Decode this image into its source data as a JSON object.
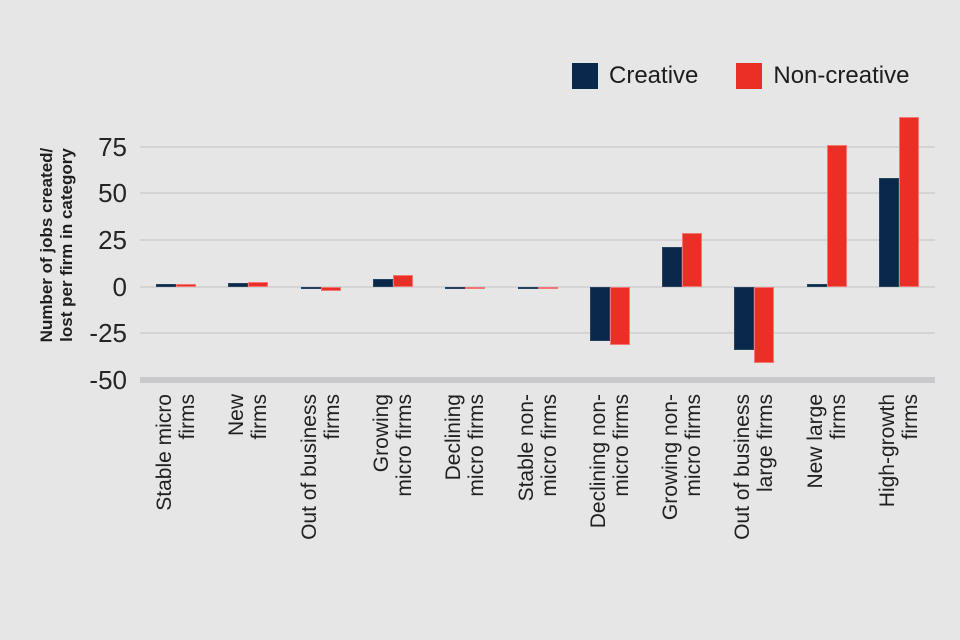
{
  "colors": {
    "background": "#e6e6e6",
    "gridline": "#d4d4d6",
    "axis_band": "#c9c9cb",
    "creative": "#0a2849",
    "non_creative": "#ea2f27"
  },
  "chart_data": {
    "type": "bar",
    "title": "",
    "ylabel": "Number of jobs created/\nlost per firm in category",
    "xlabel": "",
    "categories": [
      "Stable micro\nfirms",
      "New\nfirms",
      "Out of business\nfirms",
      "Growing\nmicro firms",
      "Declining\nmicro firms",
      "Stable non-\nmicro firms",
      "Declining non-\nmicro firms",
      "Growing non-\nmicro firms",
      "Out of business\nlarge firms",
      "New large\nfirms",
      "High-growth\nfirms"
    ],
    "series": [
      {
        "name": "Creative",
        "color": "#0a2849",
        "values": [
          1.5,
          2,
          -1.5,
          4,
          -1.5,
          -1,
          -29,
          21,
          -34,
          1.5,
          58
        ]
      },
      {
        "name": "Non-creative",
        "color": "#ea2f27",
        "values": [
          1.5,
          2.5,
          -2.5,
          6,
          -1.5,
          -1.5,
          -31.5,
          29,
          -41,
          76,
          91
        ]
      }
    ],
    "yticks": [
      75,
      50,
      25,
      0,
      -25,
      -50
    ],
    "ylim": [
      -50,
      100
    ],
    "grid": true,
    "legend_position": "top-right"
  }
}
